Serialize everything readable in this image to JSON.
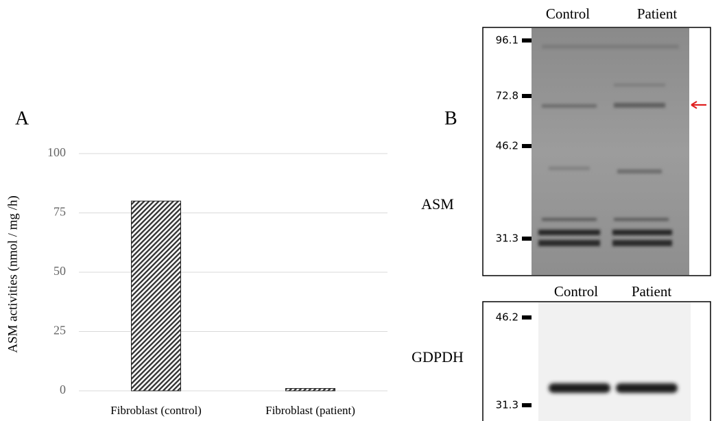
{
  "chart_data": {
    "type": "bar",
    "panel_label": "A",
    "y_label": "ASM activities (nmol / mg /h)",
    "categories": [
      "Fibroblast (control)",
      "Fibroblast (patient)"
    ],
    "values": [
      80,
      1
    ],
    "color": "#333333",
    "ylim": [
      0,
      100
    ],
    "yticks": [
      0,
      25,
      50,
      75,
      100
    ],
    "grid": true
  },
  "blot": {
    "panel_label": "B",
    "panels": [
      {
        "name": "ASM",
        "lanes": [
          "Control",
          "Patient"
        ],
        "markers": [
          96.1,
          72.8,
          46.2,
          31.3
        ]
      },
      {
        "name": "GDPDH",
        "lanes": [
          "Control",
          "Patient"
        ],
        "markers": [
          46.2,
          31.3
        ]
      }
    ]
  }
}
